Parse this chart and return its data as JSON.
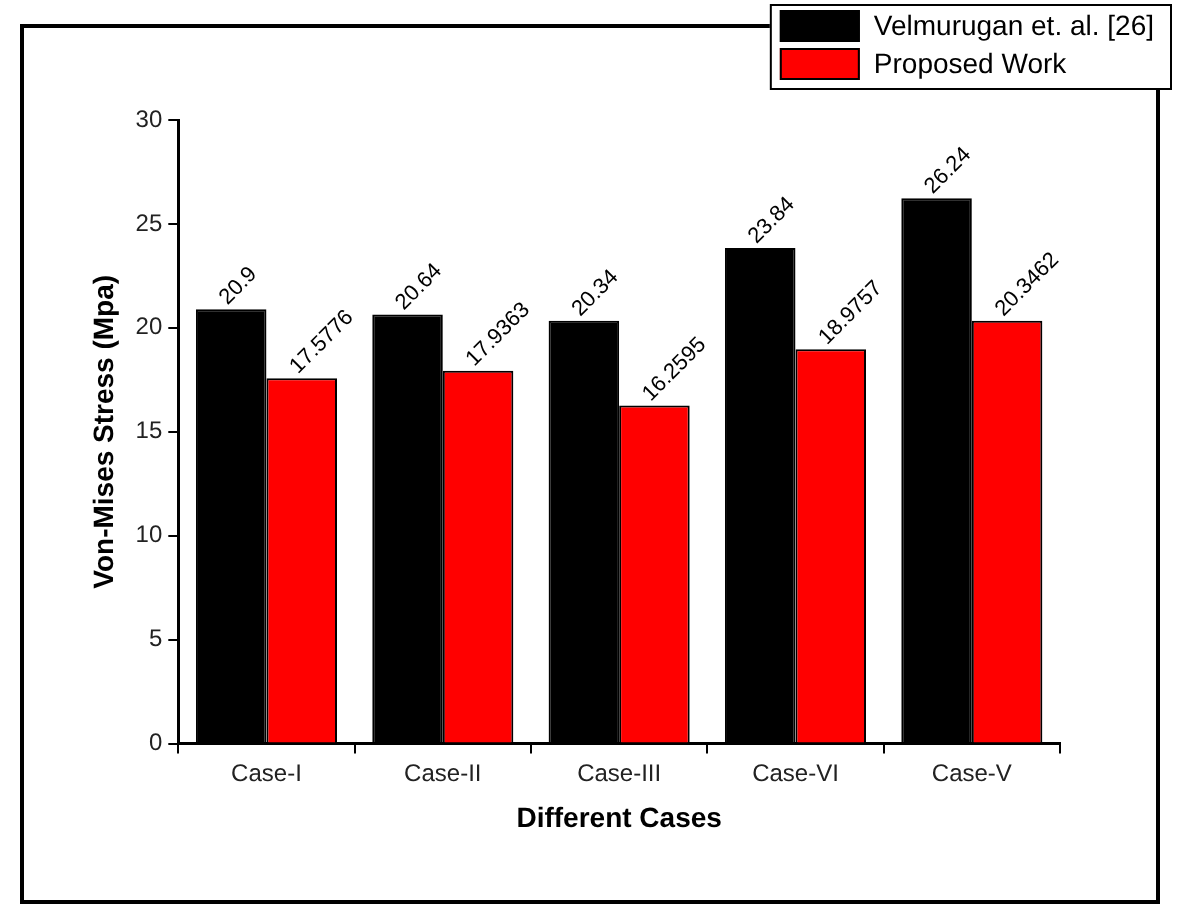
{
  "chart_data": {
    "type": "bar",
    "xlabel": "Different Cases",
    "ylabel": "Von-Mises Stress (Mpa)",
    "categories": [
      "Case-I",
      "Case-II",
      "Case-III",
      "Case-VI",
      "Case-V"
    ],
    "series": [
      {
        "name": "Velmurugan et. al. [26]",
        "color": "#000000",
        "values": [
          20.9,
          20.64,
          20.34,
          23.84,
          26.24
        ]
      },
      {
        "name": "Proposed Work",
        "color": "#ff0000",
        "values": [
          17.5776,
          17.9363,
          16.2595,
          18.9757,
          20.3462
        ]
      }
    ],
    "ylim": [
      0,
      30
    ],
    "yticks": [
      0,
      5,
      10,
      15,
      20,
      25,
      30
    ],
    "grid": false,
    "legend": "top right",
    "data_labels": true
  }
}
